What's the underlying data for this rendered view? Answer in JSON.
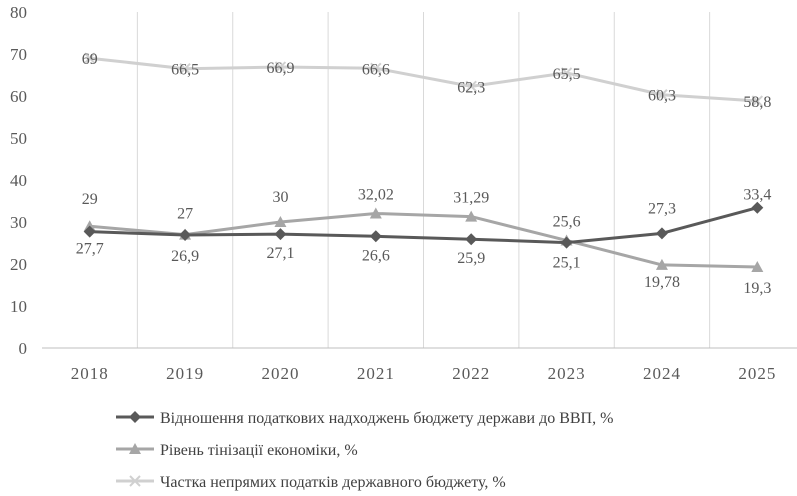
{
  "chart_data": {
    "type": "line",
    "categories": [
      "2018",
      "2019",
      "2020",
      "2021",
      "2022",
      "2023",
      "2024",
      "2025"
    ],
    "ylim": [
      0,
      80
    ],
    "yticks": [
      0,
      10,
      20,
      30,
      40,
      50,
      60,
      70,
      80
    ],
    "grid": "vertical",
    "legend_position": "bottom",
    "series": [
      {
        "name": "Відношення податкових надходжень бюджету держави до ВВП, %",
        "values": [
          27.7,
          26.9,
          27.1,
          26.6,
          25.9,
          25.1,
          27.3,
          33.4
        ],
        "labels": [
          "27,7",
          "26,9",
          "27,1",
          "26,6",
          "25,9",
          "25,1",
          "27,3",
          "33,4"
        ],
        "color": "#595959",
        "marker": "diamond"
      },
      {
        "name": "Рівень тінізації економіки, %",
        "values": [
          29,
          27,
          30,
          32.02,
          31.29,
          25.6,
          19.78,
          19.3
        ],
        "labels": [
          "29",
          "27",
          "30",
          "32,02",
          "31,29",
          "25,6",
          "19,78",
          "19,3"
        ],
        "color": "#a6a6a6",
        "marker": "triangle"
      },
      {
        "name": "Частка непрямих податків державного бюджету, %",
        "values": [
          69,
          66.5,
          66.9,
          66.6,
          62.3,
          65.5,
          60.3,
          58.8
        ],
        "labels": [
          "69",
          "66,5",
          "66,9",
          "66,6",
          "62,3",
          "65,5",
          "60,3",
          "58,8"
        ],
        "color": "#d0d0d0",
        "marker": "x"
      }
    ]
  }
}
